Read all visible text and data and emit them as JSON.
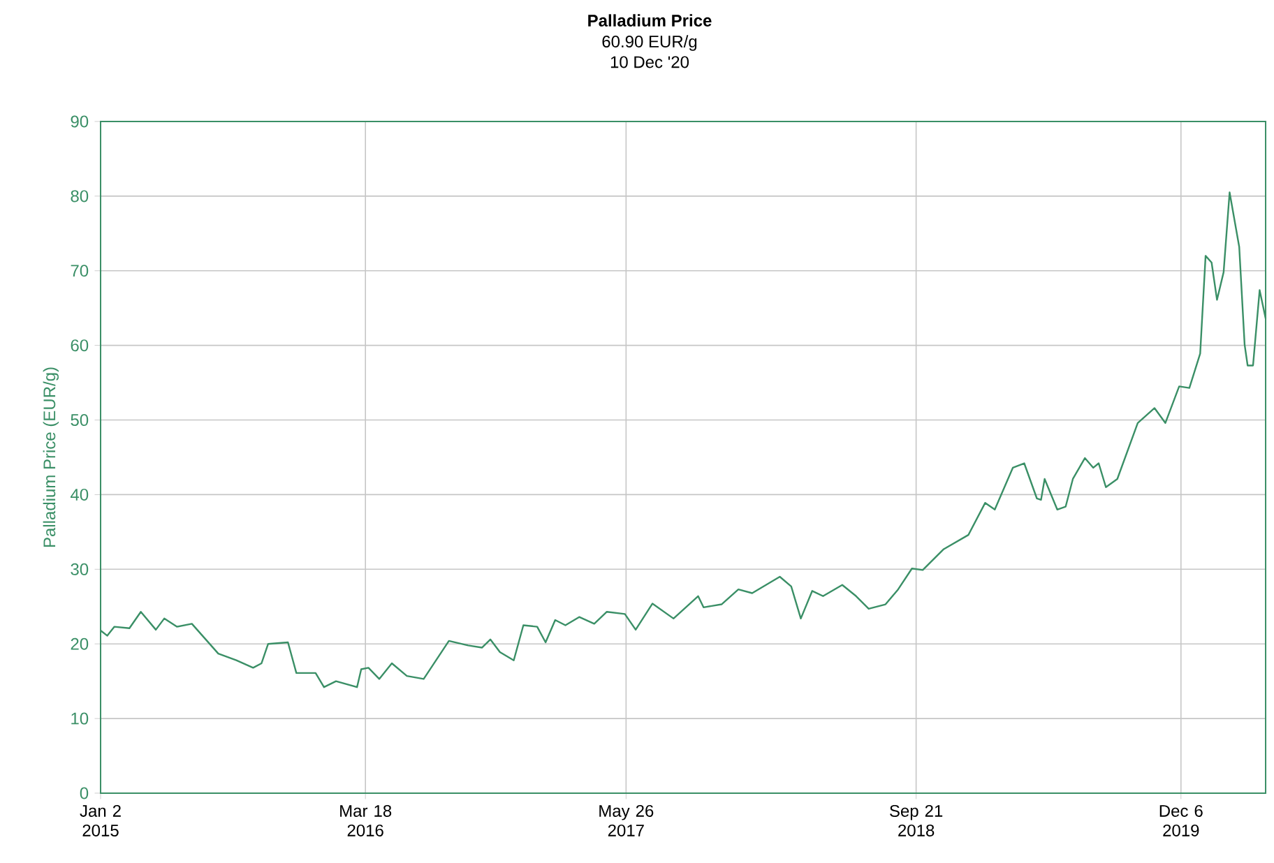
{
  "chart_data": {
    "type": "line",
    "title": "Palladium Price",
    "subtitle": "60.90 EUR/g",
    "annotations": [
      "10 Dec '20"
    ],
    "ylabel": "Palladium Price (EUR/g)",
    "x": [
      "2015-01-02",
      "2015-01-13",
      "2015-01-25",
      "2015-02-19",
      "2015-03-10",
      "2015-04-04",
      "2015-04-18",
      "2015-05-09",
      "2015-06-03",
      "2015-07-17",
      "2015-08-16",
      "2015-09-13",
      "2015-09-27",
      "2015-10-08",
      "2015-11-10",
      "2015-11-24",
      "2015-12-26",
      "2016-01-09",
      "2016-01-29",
      "2016-03-04",
      "2016-03-11",
      "2016-03-23",
      "2016-04-10",
      "2016-05-01",
      "2016-05-26",
      "2016-06-23",
      "2016-08-04",
      "2016-09-05",
      "2016-09-28",
      "2016-10-12",
      "2016-10-28",
      "2016-11-20",
      "2016-12-06",
      "2016-12-29",
      "2017-01-12",
      "2017-01-28",
      "2017-02-14",
      "2017-03-09",
      "2017-04-03",
      "2017-04-24",
      "2017-05-24",
      "2017-06-11",
      "2017-07-09",
      "2017-08-13",
      "2017-09-23",
      "2017-10-02",
      "2017-11-01",
      "2017-11-29",
      "2017-12-22",
      "2018-02-06",
      "2018-02-25",
      "2018-03-13",
      "2018-04-01",
      "2018-04-19",
      "2018-05-21",
      "2018-06-13",
      "2018-07-04",
      "2018-08-01",
      "2018-08-22",
      "2018-09-14",
      "2018-10-02",
      "2018-11-06",
      "2018-12-17",
      "2019-01-14",
      "2019-01-30",
      "2019-03-01",
      "2019-03-20",
      "2019-04-10",
      "2019-04-17",
      "2019-04-23",
      "2019-05-14",
      "2019-05-28",
      "2019-06-09",
      "2019-06-29",
      "2019-07-13",
      "2019-07-22",
      "2019-08-03",
      "2019-08-22",
      "2019-09-25",
      "2019-10-23",
      "2019-11-10",
      "2019-12-03",
      "2019-12-20",
      "2020-01-07",
      "2020-01-16",
      "2020-01-26",
      "2020-02-04",
      "2020-02-15",
      "2020-02-25",
      "2020-03-12",
      "2020-03-21",
      "2020-03-26",
      "2020-04-04",
      "2020-04-15",
      "2020-04-25"
    ],
    "series": [
      {
        "color": "#3a8f66",
        "values": [
          21.8,
          21.1,
          22.3,
          22.1,
          24.3,
          21.9,
          23.4,
          22.3,
          22.7,
          18.7,
          17.8,
          16.8,
          17.4,
          20.0,
          20.2,
          16.1,
          16.1,
          14.2,
          15.0,
          14.2,
          16.6,
          16.8,
          15.3,
          17.4,
          15.7,
          15.3,
          20.4,
          19.8,
          19.5,
          20.6,
          18.9,
          17.8,
          22.5,
          22.3,
          20.2,
          23.2,
          22.5,
          23.6,
          22.7,
          24.3,
          24.0,
          21.9,
          25.4,
          23.4,
          26.4,
          24.9,
          25.3,
          27.3,
          26.8,
          29.0,
          27.7,
          23.4,
          27.1,
          26.4,
          27.9,
          26.4,
          24.7,
          25.3,
          27.3,
          30.1,
          29.9,
          32.7,
          34.6,
          38.9,
          38.0,
          43.6,
          44.2,
          39.5,
          39.3,
          42.1,
          38.0,
          38.4,
          42.1,
          44.9,
          43.6,
          44.2,
          41.0,
          42.1,
          49.6,
          51.6,
          49.6,
          54.5,
          54.3,
          58.9,
          72.0,
          71.1,
          66.1,
          69.8,
          80.5,
          73.2,
          60.1,
          57.3,
          57.3,
          67.4,
          63.6
        ]
      }
    ],
    "xlim": [
      "2015-01-02",
      "2020-04-25"
    ],
    "xticks": [
      {
        "value": "2015-01-02",
        "label": "Jan 2 2015"
      },
      {
        "value": "2016-03-18",
        "label": "Mar 18 2016"
      },
      {
        "value": "2017-05-26",
        "label": "May 26 2017"
      },
      {
        "value": "2018-09-21",
        "label": "Sep 21 2018"
      },
      {
        "value": "2019-12-06",
        "label": "Dec 6 2019"
      }
    ],
    "ylim": [
      0,
      90
    ],
    "yticks": [
      0,
      10,
      20,
      30,
      40,
      50,
      60,
      70,
      80,
      90
    ],
    "grid": true,
    "marker": "none",
    "line_style": "solid"
  }
}
